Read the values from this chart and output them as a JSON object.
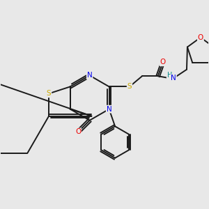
{
  "bg_color": "#e8e8e8",
  "atom_colors": {
    "C": "#1a1a1a",
    "N": "#0000ee",
    "O": "#ee0000",
    "S": "#ccaa00",
    "H": "#008888"
  },
  "figsize": [
    3.0,
    3.0
  ],
  "dpi": 100,
  "lw": 1.4,
  "fs": 7.0
}
